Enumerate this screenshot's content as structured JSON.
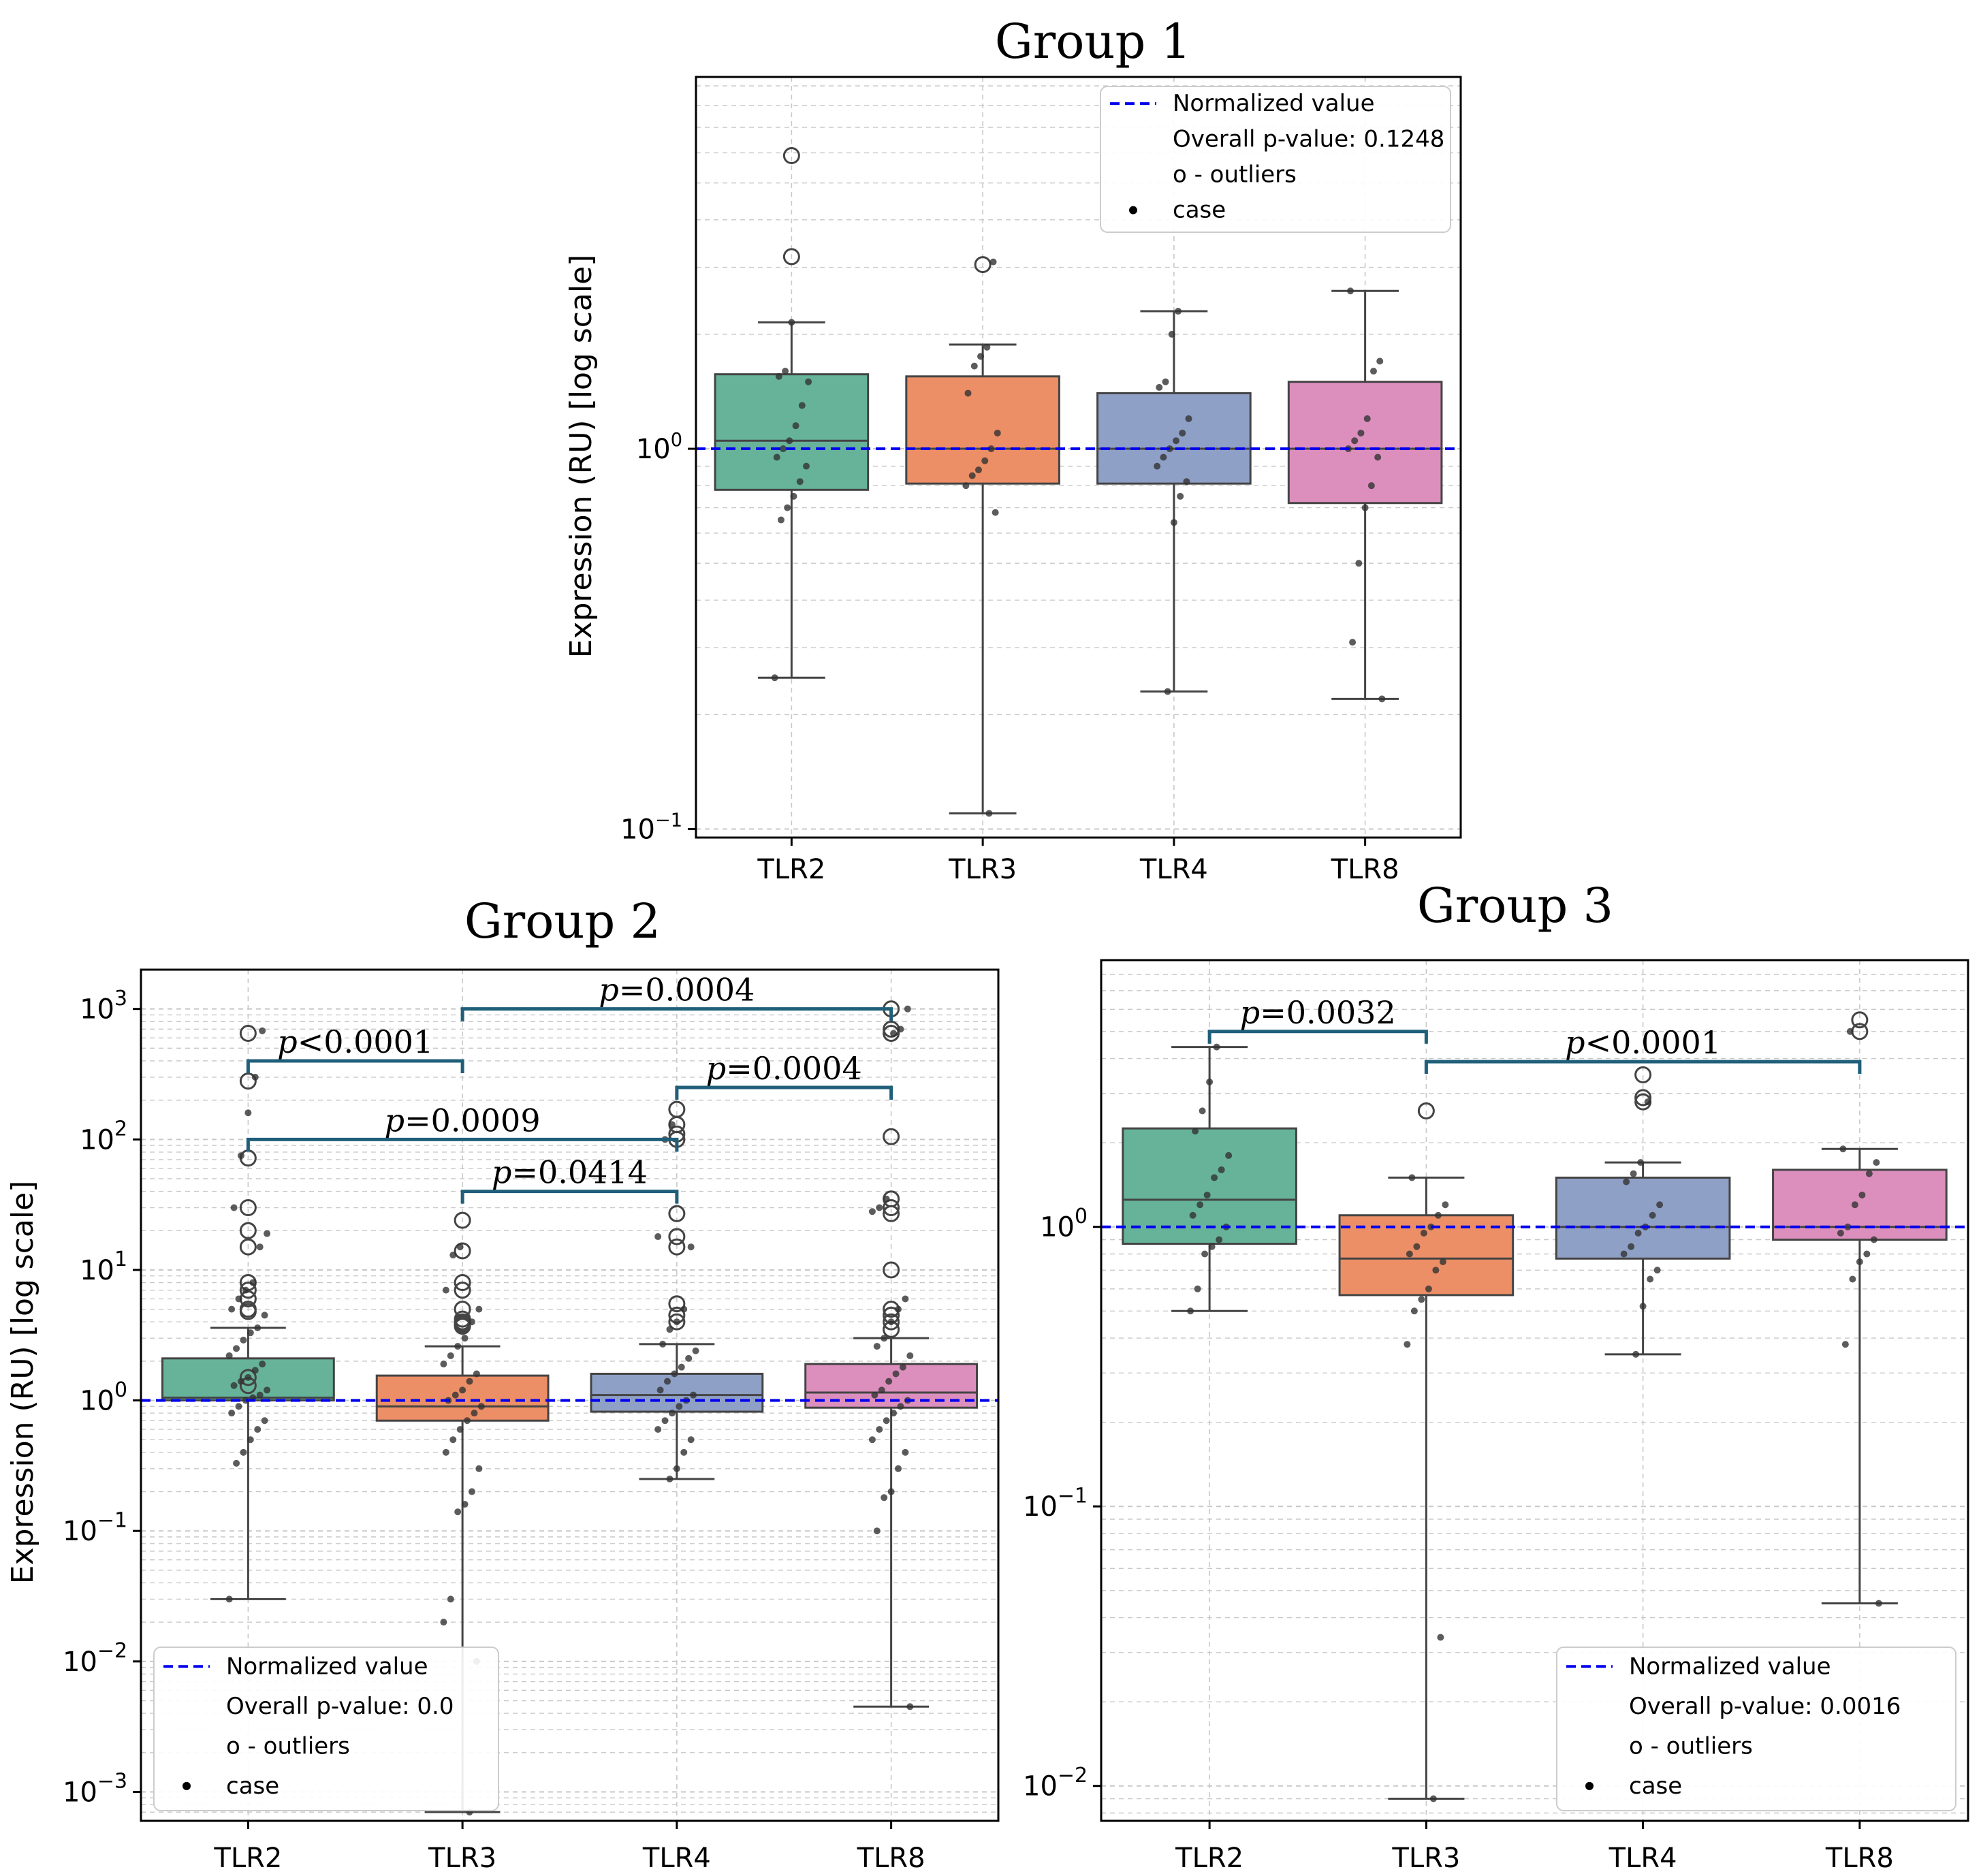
{
  "chart_data": [
    {
      "type": "box",
      "title": "Group 1",
      "xlabel": "",
      "ylabel": "Expression (RU) [log scale]",
      "yscale": "log",
      "ylim": [
        0.095,
        9.5
      ],
      "yticks": [
        {
          "value": 0.1,
          "exp": "−1"
        },
        {
          "value": 1,
          "exp": "0"
        }
      ],
      "categories": [
        "TLR2",
        "TLR3",
        "TLR4",
        "TLR8"
      ],
      "colors": [
        "#66b39a",
        "#ec8f67",
        "#8fa0c6",
        "#dc8fbd"
      ],
      "boxes": [
        {
          "whisker_low": 0.25,
          "q1": 0.78,
          "median": 1.05,
          "q3": 1.57,
          "whisker_high": 2.15
        },
        {
          "whisker_low": 0.11,
          "q1": 0.81,
          "median": 1.0,
          "q3": 1.55,
          "whisker_high": 1.88
        },
        {
          "whisker_low": 0.23,
          "q1": 0.81,
          "median": 1.0,
          "q3": 1.4,
          "whisker_high": 2.3
        },
        {
          "whisker_low": 0.22,
          "q1": 0.72,
          "median": 1.0,
          "q3": 1.5,
          "whisker_high": 2.6
        }
      ],
      "points": [
        [
          0.25,
          0.65,
          0.7,
          0.75,
          0.82,
          0.9,
          0.95,
          1.0,
          1.05,
          1.15,
          1.3,
          1.5,
          1.55,
          1.6,
          2.15
        ],
        [
          0.11,
          0.68,
          0.8,
          0.85,
          0.88,
          0.93,
          1.0,
          1.1,
          1.4,
          1.65,
          1.75,
          1.85,
          3.1
        ],
        [
          0.23,
          0.64,
          0.75,
          0.82,
          0.9,
          0.95,
          1.0,
          1.05,
          1.1,
          1.2,
          1.45,
          1.5,
          2.0,
          2.3
        ],
        [
          0.22,
          0.31,
          0.5,
          0.7,
          0.8,
          0.95,
          1.0,
          1.05,
          1.1,
          1.2,
          1.6,
          1.7,
          2.6
        ]
      ],
      "outliers": [
        [
          5.9,
          3.2
        ],
        [
          3.05
        ],
        [],
        []
      ],
      "reference_line": 1.0,
      "legend": {
        "position": "upper right",
        "entries": [
          "Normalized value",
          "Overall p-value: 0.1248",
          "o - outliers",
          "case"
        ]
      }
    },
    {
      "type": "box",
      "title": "Group 2",
      "xlabel": "",
      "ylabel": "Expression (RU) [log scale]",
      "yscale": "log",
      "ylim": [
        0.0006,
        2000
      ],
      "yticks": [
        {
          "value": 0.001,
          "exp": "−3"
        },
        {
          "value": 0.01,
          "exp": "−2"
        },
        {
          "value": 0.1,
          "exp": "−1"
        },
        {
          "value": 1,
          "exp": "0"
        },
        {
          "value": 10,
          "exp": "1"
        },
        {
          "value": 100,
          "exp": "2"
        },
        {
          "value": 1000,
          "exp": "3"
        }
      ],
      "categories": [
        "TLR2",
        "TLR3",
        "TLR4",
        "TLR8"
      ],
      "colors": [
        "#66b39a",
        "#ec8f67",
        "#8fa0c6",
        "#dc8fbd"
      ],
      "boxes": [
        {
          "whisker_low": 0.03,
          "q1": 1.0,
          "median": 1.05,
          "q3": 2.1,
          "whisker_high": 3.6
        },
        {
          "whisker_low": 0.0007,
          "q1": 0.7,
          "median": 0.9,
          "q3": 1.55,
          "whisker_high": 2.6
        },
        {
          "whisker_low": 0.25,
          "q1": 0.82,
          "median": 1.1,
          "q3": 1.6,
          "whisker_high": 2.7
        },
        {
          "whisker_low": 0.0045,
          "q1": 0.88,
          "median": 1.15,
          "q3": 1.9,
          "whisker_high": 3.0
        }
      ],
      "points": [
        [
          0.03,
          0.33,
          0.4,
          0.5,
          0.6,
          0.7,
          0.8,
          0.9,
          1.0,
          1.05,
          1.1,
          1.2,
          1.3,
          1.4,
          1.5,
          1.7,
          1.9,
          2.2,
          2.5,
          2.9,
          3.3,
          3.6,
          4.5,
          5.0,
          6.0,
          7.0,
          8.0,
          15,
          19,
          30,
          75,
          160,
          300,
          680
        ],
        [
          0.0007,
          0.01,
          0.02,
          0.03,
          0.14,
          0.16,
          0.2,
          0.3,
          0.4,
          0.5,
          0.6,
          0.7,
          0.8,
          0.9,
          1.0,
          1.1,
          1.2,
          1.4,
          1.6,
          1.9,
          2.2,
          2.6,
          3.0,
          4.0,
          5.0,
          7.0,
          13,
          15
        ],
        [
          0.25,
          0.3,
          0.4,
          0.5,
          0.6,
          0.7,
          0.8,
          0.9,
          1.0,
          1.1,
          1.2,
          1.4,
          1.6,
          1.8,
          2.1,
          2.4,
          2.7,
          3.5,
          4.0,
          5.0,
          15,
          18,
          100,
          130
        ],
        [
          0.0045,
          0.1,
          0.18,
          0.2,
          0.3,
          0.4,
          0.5,
          0.6,
          0.7,
          0.8,
          0.9,
          1.0,
          1.1,
          1.2,
          1.4,
          1.6,
          1.8,
          2.2,
          2.6,
          3.0,
          4.0,
          5.0,
          6.0,
          28,
          30,
          35,
          650,
          700,
          1000
        ]
      ],
      "outliers": [
        [
          280,
          72,
          30,
          20,
          15,
          8,
          7,
          6,
          5,
          4.8,
          1.5,
          1.3,
          650
        ],
        [
          24,
          14,
          8,
          7,
          5,
          4.2,
          4,
          3.9,
          3.8,
          3.7
        ],
        [
          170,
          130,
          110,
          100,
          27,
          18,
          15,
          5.5,
          4.5,
          4
        ],
        [
          1000,
          700,
          650,
          105,
          35,
          30,
          27,
          10,
          5,
          4.5,
          4,
          3.5
        ]
      ],
      "reference_line": 1.0,
      "significance": [
        {
          "label": "<0.0001",
          "from": "TLR2",
          "to": "TLR3",
          "y": 400
        },
        {
          "label": "=0.0004",
          "from": "TLR3",
          "to": "TLR8",
          "y": 1000
        },
        {
          "label": "=0.0004",
          "from": "TLR4",
          "to": "TLR8",
          "y": 250
        },
        {
          "label": "=0.0009",
          "from": "TLR2",
          "to": "TLR4",
          "y": 100
        },
        {
          "label": "=0.0414",
          "from": "TLR3",
          "to": "TLR4",
          "y": 40
        }
      ],
      "legend": {
        "position": "lower left",
        "entries": [
          "Normalized value",
          "Overall p-value: 0.0",
          "o - outliers",
          "case"
        ]
      }
    },
    {
      "type": "box",
      "title": "Group 3",
      "xlabel": "",
      "ylabel": "",
      "yscale": "log",
      "ylim": [
        0.0075,
        9.0
      ],
      "yticks": [
        {
          "value": 0.01,
          "exp": "−2"
        },
        {
          "value": 0.1,
          "exp": "−1"
        },
        {
          "value": 1,
          "exp": "0"
        }
      ],
      "categories": [
        "TLR2",
        "TLR3",
        "TLR4",
        "TLR8"
      ],
      "colors": [
        "#66b39a",
        "#ec8f67",
        "#8fa0c6",
        "#dc8fbd"
      ],
      "boxes": [
        {
          "whisker_low": 0.5,
          "q1": 0.87,
          "median": 1.25,
          "q3": 2.25,
          "whisker_high": 4.4
        },
        {
          "whisker_low": 0.009,
          "q1": 0.57,
          "median": 0.77,
          "q3": 1.1,
          "whisker_high": 1.5
        },
        {
          "whisker_low": 0.35,
          "q1": 0.77,
          "median": 1.0,
          "q3": 1.5,
          "whisker_high": 1.7
        },
        {
          "whisker_low": 0.045,
          "q1": 0.9,
          "median": 1.0,
          "q3": 1.6,
          "whisker_high": 1.9
        }
      ],
      "points": [
        [
          0.5,
          0.6,
          0.8,
          0.85,
          0.9,
          1.0,
          1.1,
          1.2,
          1.3,
          1.5,
          1.6,
          1.8,
          2.2,
          2.6,
          3.3,
          4.4
        ],
        [
          0.009,
          0.034,
          0.38,
          0.5,
          0.55,
          0.6,
          0.7,
          0.75,
          0.8,
          0.85,
          0.95,
          1.0,
          1.1,
          1.2,
          1.5
        ],
        [
          0.35,
          0.52,
          0.65,
          0.7,
          0.8,
          0.85,
          0.95,
          1.0,
          1.1,
          1.2,
          1.45,
          1.55,
          1.7,
          2.8
        ],
        [
          0.045,
          0.38,
          0.65,
          0.75,
          0.8,
          0.9,
          0.95,
          1.0,
          1.2,
          1.3,
          1.55,
          1.7,
          1.9,
          5.0
        ]
      ],
      "outliers": [
        [],
        [
          2.6
        ],
        [
          3.5,
          2.9,
          2.8
        ],
        [
          5.5,
          5.0
        ]
      ],
      "reference_line": 1.0,
      "significance": [
        {
          "label": "=0.0032",
          "from": "TLR2",
          "to": "TLR3",
          "y": 5.0
        },
        {
          "label": "<0.0001",
          "from": "TLR3",
          "to": "TLR8",
          "y": 3.9
        }
      ],
      "legend": {
        "position": "lower right",
        "entries": [
          "Normalized value",
          "Overall p-value: 0.0016",
          "o - outliers",
          "case"
        ]
      }
    }
  ],
  "style": {
    "reference_color": "#0000ee",
    "bracket_color": "#1f5f7a",
    "edge_color": "#444444",
    "grid_color": "#c8c8c8",
    "point_color": "#333333"
  },
  "p_prefix": "p"
}
